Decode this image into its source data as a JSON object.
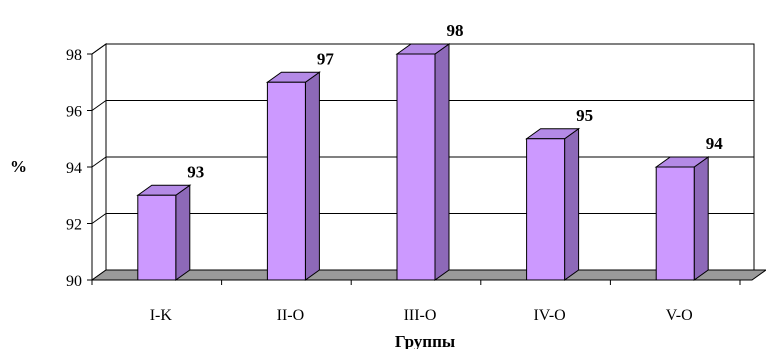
{
  "chart_data": {
    "type": "bar",
    "style": "3d-column",
    "categories": [
      "I-K",
      "II-O",
      "III-O",
      "IV-O",
      "V-O"
    ],
    "values": [
      93,
      97,
      98,
      95,
      94
    ],
    "data_labels": [
      "93",
      "97",
      "98",
      "95",
      "94"
    ],
    "title": "",
    "xlabel": "Группы",
    "ylabel": "%",
    "ylim": [
      90,
      98
    ],
    "yticks": [
      "90",
      "92",
      "94",
      "96",
      "98"
    ],
    "grid": true,
    "legend": "none",
    "colors": {
      "bar_front": "#cc99ff",
      "bar_side": "#8d69b8",
      "bar_top": "#b48ae6",
      "bar_stroke": "#000000",
      "floor": "#9a9a9a",
      "wall": "#ffffff",
      "grid": "#000000"
    }
  }
}
